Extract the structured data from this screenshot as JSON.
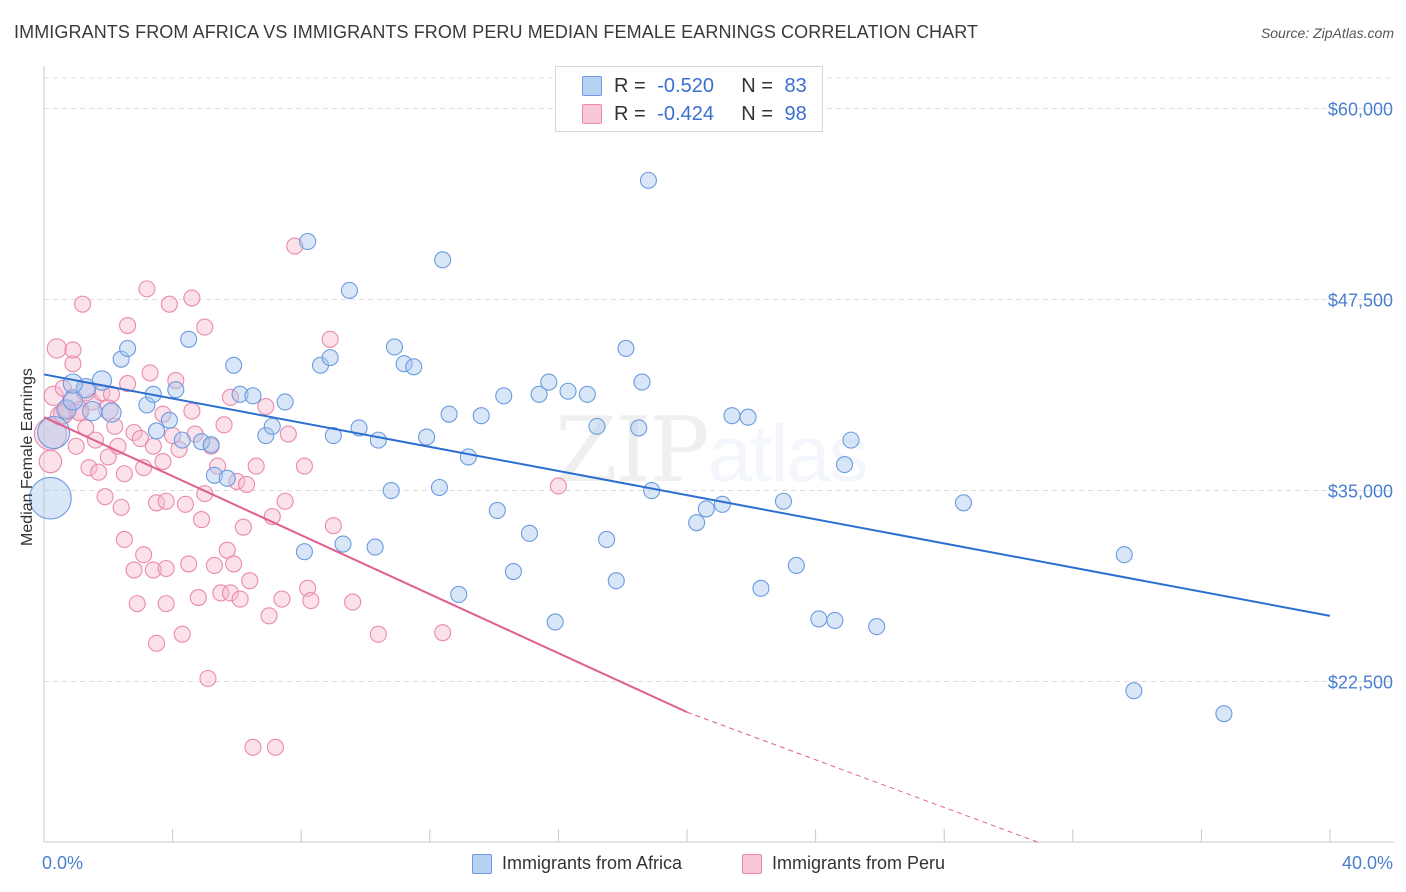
{
  "header": {
    "title": "IMMIGRANTS FROM AFRICA VS IMMIGRANTS FROM PERU MEDIAN FEMALE EARNINGS CORRELATION CHART",
    "source": "Source: ZipAtlas.com"
  },
  "watermark": {
    "zip": "ZIP",
    "atlas": "atlas"
  },
  "legend": {
    "rows": [
      {
        "r_label": "R = ",
        "r_value": "-0.520",
        "n_label": "N = ",
        "n_value": "83"
      },
      {
        "r_label": "R = ",
        "r_value": "-0.424",
        "n_label": "N = ",
        "n_value": "98"
      }
    ]
  },
  "colors": {
    "africa_fill": "#a9c8f0",
    "africa_stroke": "#6c9be0",
    "africa_line": "#2c6fd0",
    "peru_fill": "#f7bcd0",
    "peru_stroke": "#ea8aab",
    "peru_line": "#e0608e",
    "label_blue": "#4a7fd0",
    "grid": "#dcdcdc"
  },
  "chart_data": {
    "type": "scatter",
    "title": "IMMIGRANTS FROM AFRICA VS IMMIGRANTS FROM PERU MEDIAN FEMALE EARNINGS CORRELATION CHART",
    "xlabel": "",
    "ylabel": "Median Female Earnings",
    "xlim": [
      0,
      40
    ],
    "ylim": [
      12000,
      62000
    ],
    "x_tick_labels": [
      "0.0%",
      "40.0%"
    ],
    "y_ticks": [
      22500,
      35000,
      47500,
      60000
    ],
    "y_tick_labels": [
      "$22,500",
      "$35,000",
      "$47,500",
      "$60,000"
    ],
    "grid": "horizontal dashed",
    "legend_position": "top-center",
    "series": [
      {
        "name": "Immigrants from Africa",
        "r": -0.52,
        "n": 83,
        "trend": {
          "x": [
            0,
            40
          ],
          "y": [
            42600,
            26800
          ]
        },
        "points": [
          [
            0.2,
            34500,
            26
          ],
          [
            0.3,
            38800,
            20
          ],
          [
            0.7,
            40300,
            12
          ],
          [
            0.9,
            40900,
            12
          ],
          [
            1.3,
            41700,
            12
          ],
          [
            1.8,
            42200,
            12
          ],
          [
            1.5,
            40200,
            12
          ],
          [
            2.1,
            40100,
            12
          ],
          [
            2.4,
            43600,
            10
          ],
          [
            2.6,
            44300,
            10
          ],
          [
            3.2,
            40600,
            10
          ],
          [
            3.4,
            41300,
            10
          ],
          [
            3.5,
            38900,
            10
          ],
          [
            3.9,
            39600,
            10
          ],
          [
            4.1,
            41600,
            10
          ],
          [
            4.3,
            38300,
            10
          ],
          [
            4.5,
            44900,
            10
          ],
          [
            4.9,
            38200,
            10
          ],
          [
            5.2,
            38000,
            10
          ],
          [
            5.3,
            36000,
            10
          ],
          [
            5.7,
            35800,
            10
          ],
          [
            5.9,
            43200,
            10
          ],
          [
            6.1,
            41300,
            10
          ],
          [
            6.5,
            41200,
            10
          ],
          [
            6.9,
            38600,
            10
          ],
          [
            7.1,
            39200,
            10
          ],
          [
            7.5,
            40800,
            10
          ],
          [
            8.1,
            31000,
            10
          ],
          [
            8.2,
            51300,
            10
          ],
          [
            8.6,
            43200,
            10
          ],
          [
            8.9,
            43700,
            10
          ],
          [
            9.0,
            38600,
            10
          ],
          [
            9.3,
            31500,
            10
          ],
          [
            9.5,
            48100,
            10
          ],
          [
            9.8,
            39100,
            10
          ],
          [
            10.3,
            31300,
            10
          ],
          [
            10.4,
            38300,
            10
          ],
          [
            10.8,
            35000,
            10
          ],
          [
            10.9,
            44400,
            10
          ],
          [
            11.2,
            43300,
            10
          ],
          [
            11.5,
            43100,
            10
          ],
          [
            11.9,
            38500,
            10
          ],
          [
            12.3,
            35200,
            10
          ],
          [
            12.6,
            40000,
            10
          ],
          [
            12.4,
            50100,
            10
          ],
          [
            12.9,
            28200,
            10
          ],
          [
            13.2,
            37200,
            10
          ],
          [
            13.6,
            39900,
            10
          ],
          [
            14.1,
            33700,
            10
          ],
          [
            14.3,
            41200,
            10
          ],
          [
            14.6,
            29700,
            10
          ],
          [
            15.1,
            32200,
            10
          ],
          [
            15.4,
            41300,
            10
          ],
          [
            15.7,
            42100,
            10
          ],
          [
            15.9,
            26400,
            10
          ],
          [
            16.3,
            41500,
            10
          ],
          [
            16.9,
            41300,
            10
          ],
          [
            17.2,
            39200,
            10
          ],
          [
            17.5,
            31800,
            10
          ],
          [
            17.8,
            29100,
            10
          ],
          [
            18.1,
            44300,
            10
          ],
          [
            18.5,
            39100,
            10
          ],
          [
            18.6,
            42100,
            10
          ],
          [
            18.9,
            35000,
            10
          ],
          [
            18.8,
            55300,
            10
          ],
          [
            20.3,
            32900,
            10
          ],
          [
            20.6,
            33800,
            10
          ],
          [
            21.1,
            34100,
            10
          ],
          [
            21.4,
            39900,
            10
          ],
          [
            21.9,
            39800,
            10
          ],
          [
            22.3,
            28600,
            10
          ],
          [
            23.0,
            34300,
            10
          ],
          [
            23.4,
            30100,
            10
          ],
          [
            24.1,
            26600,
            10
          ],
          [
            24.6,
            26500,
            10
          ],
          [
            24.9,
            36700,
            10
          ],
          [
            25.1,
            38300,
            10
          ],
          [
            25.9,
            26100,
            10
          ],
          [
            28.6,
            34200,
            10
          ],
          [
            33.6,
            30800,
            10
          ],
          [
            33.9,
            21900,
            10
          ],
          [
            36.7,
            20400,
            10
          ],
          [
            0.9,
            42000,
            12
          ]
        ]
      },
      {
        "name": "Immigrants from Peru",
        "r": -0.424,
        "n": 98,
        "trend": {
          "x": [
            0,
            20
          ],
          "y": [
            39800,
            20500
          ]
        },
        "trend_dashed": {
          "x": [
            20,
            30.9
          ],
          "y": [
            20500,
            12000
          ]
        },
        "points": [
          [
            0.2,
            36900,
            14
          ],
          [
            0.2,
            38700,
            20
          ],
          [
            0.3,
            41200,
            12
          ],
          [
            0.4,
            44300,
            12
          ],
          [
            0.5,
            39900,
            12
          ],
          [
            0.6,
            41700,
            10
          ],
          [
            0.7,
            40300,
            10
          ],
          [
            0.9,
            43300,
            10
          ],
          [
            0.9,
            41100,
            10
          ],
          [
            0.9,
            44200,
            10
          ],
          [
            1.0,
            37900,
            10
          ],
          [
            1.1,
            40100,
            10
          ],
          [
            1.2,
            47200,
            10
          ],
          [
            1.3,
            39100,
            10
          ],
          [
            1.4,
            36500,
            10
          ],
          [
            1.5,
            40800,
            10
          ],
          [
            1.6,
            38300,
            10
          ],
          [
            1.7,
            36200,
            10
          ],
          [
            1.8,
            41400,
            10
          ],
          [
            1.9,
            34600,
            10
          ],
          [
            2.0,
            37200,
            10
          ],
          [
            2.1,
            41300,
            10
          ],
          [
            2.2,
            39200,
            10
          ],
          [
            2.3,
            37900,
            10
          ],
          [
            2.4,
            33900,
            10
          ],
          [
            2.5,
            36100,
            10
          ],
          [
            2.5,
            31800,
            10
          ],
          [
            2.6,
            45800,
            10
          ],
          [
            2.6,
            42000,
            10
          ],
          [
            2.8,
            38800,
            10
          ],
          [
            2.8,
            29800,
            10
          ],
          [
            2.9,
            27600,
            10
          ],
          [
            3.0,
            38400,
            10
          ],
          [
            3.1,
            36500,
            10
          ],
          [
            3.1,
            30800,
            10
          ],
          [
            3.2,
            48200,
            10
          ],
          [
            3.3,
            42700,
            10
          ],
          [
            3.4,
            37900,
            10
          ],
          [
            3.4,
            29800,
            10
          ],
          [
            3.5,
            34200,
            10
          ],
          [
            3.5,
            25000,
            10
          ],
          [
            3.7,
            40000,
            10
          ],
          [
            3.7,
            36900,
            10
          ],
          [
            3.8,
            34300,
            10
          ],
          [
            3.8,
            29900,
            10
          ],
          [
            3.8,
            27600,
            10
          ],
          [
            3.9,
            47200,
            10
          ],
          [
            4.0,
            38600,
            10
          ],
          [
            4.1,
            42200,
            10
          ],
          [
            4.2,
            37700,
            10
          ],
          [
            4.3,
            25600,
            10
          ],
          [
            4.4,
            34100,
            10
          ],
          [
            4.5,
            30200,
            10
          ],
          [
            4.6,
            40200,
            10
          ],
          [
            4.6,
            47600,
            10
          ],
          [
            4.7,
            38700,
            10
          ],
          [
            4.8,
            28000,
            10
          ],
          [
            4.9,
            33100,
            10
          ],
          [
            5.0,
            45700,
            10
          ],
          [
            5.0,
            34800,
            10
          ],
          [
            5.1,
            22700,
            10
          ],
          [
            5.2,
            37900,
            10
          ],
          [
            5.3,
            30100,
            10
          ],
          [
            5.4,
            36600,
            10
          ],
          [
            5.5,
            28300,
            10
          ],
          [
            5.6,
            39300,
            10
          ],
          [
            5.7,
            31100,
            10
          ],
          [
            5.8,
            28300,
            10
          ],
          [
            5.8,
            41100,
            10
          ],
          [
            5.9,
            30200,
            10
          ],
          [
            6.0,
            35600,
            10
          ],
          [
            6.1,
            27900,
            10
          ],
          [
            6.2,
            32600,
            10
          ],
          [
            6.3,
            35400,
            10
          ],
          [
            6.4,
            29100,
            10
          ],
          [
            6.5,
            18200,
            10
          ],
          [
            6.6,
            36600,
            10
          ],
          [
            6.9,
            40500,
            10
          ],
          [
            7.0,
            26800,
            10
          ],
          [
            7.1,
            33300,
            10
          ],
          [
            7.2,
            18200,
            10
          ],
          [
            7.4,
            27900,
            10
          ],
          [
            7.5,
            34300,
            10
          ],
          [
            7.6,
            38700,
            10
          ],
          [
            7.8,
            51000,
            10
          ],
          [
            8.1,
            36600,
            10
          ],
          [
            8.2,
            28600,
            10
          ],
          [
            8.3,
            27800,
            10
          ],
          [
            8.9,
            44900,
            10
          ],
          [
            9.0,
            32700,
            10
          ],
          [
            9.6,
            27700,
            10
          ],
          [
            10.4,
            25600,
            10
          ],
          [
            12.4,
            25700,
            10
          ],
          [
            16.0,
            35300,
            10
          ],
          [
            2.0,
            40300,
            12
          ],
          [
            0.6,
            40000,
            12
          ],
          [
            1.1,
            40200,
            12
          ],
          [
            1.3,
            41500,
            12
          ]
        ]
      }
    ]
  },
  "bottom_legend": {
    "items": [
      {
        "label": "Immigrants from Africa"
      },
      {
        "label": "Immigrants from Peru"
      }
    ]
  }
}
